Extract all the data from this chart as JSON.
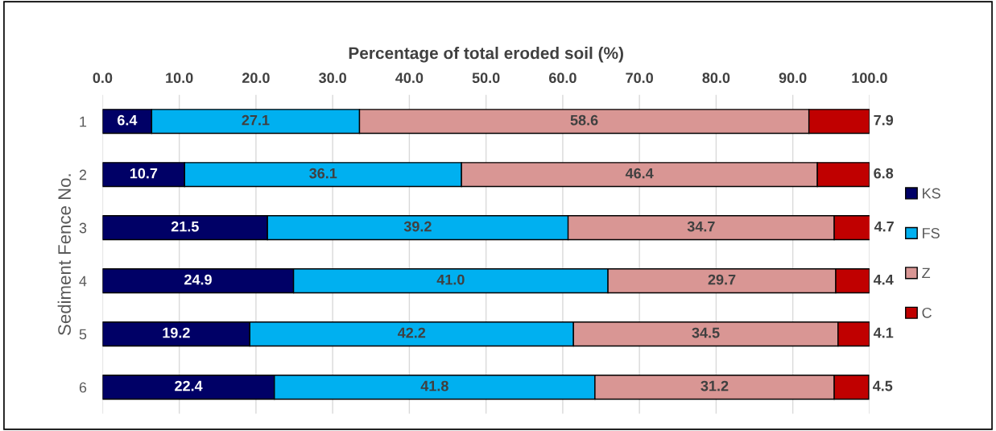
{
  "chart_data": {
    "type": "bar",
    "orientation": "horizontal",
    "stacked": true,
    "xlabel": "Percentage of total eroded soil (%)",
    "ylabel": "Sediment Fence No.",
    "categories": [
      "1",
      "2",
      "3",
      "4",
      "5",
      "6"
    ],
    "series": [
      {
        "name": "KS",
        "color": "#000066",
        "values": [
          6.4,
          10.7,
          21.5,
          24.9,
          19.2,
          22.4
        ],
        "value_labels": [
          "6.4",
          "10.7",
          "21.5",
          "24.9",
          "19.2",
          "22.4"
        ]
      },
      {
        "name": "FS",
        "color": "#00b0f0",
        "values": [
          27.1,
          36.1,
          39.2,
          41.0,
          42.2,
          41.8
        ],
        "value_labels": [
          "27.1",
          "36.1",
          "39.2",
          "41.0",
          "42.2",
          "41.8"
        ]
      },
      {
        "name": "Z",
        "color": "#d99694",
        "values": [
          58.6,
          46.4,
          34.7,
          29.7,
          34.5,
          31.2
        ],
        "value_labels": [
          "58.6",
          "46.4",
          "34.7",
          "29.7",
          "34.5",
          "31.2"
        ]
      },
      {
        "name": "C",
        "color": "#c00000",
        "values": [
          7.9,
          6.8,
          4.7,
          4.4,
          4.1,
          4.5
        ],
        "value_labels": [
          "7.9",
          "6.8",
          "4.7",
          "4.4",
          "4.1",
          "4.5"
        ]
      }
    ],
    "xlim": [
      0,
      100
    ],
    "xticks": [
      {
        "value": 0,
        "label": "0.0"
      },
      {
        "value": 10,
        "label": "10.0"
      },
      {
        "value": 20,
        "label": "20.0"
      },
      {
        "value": 30,
        "label": "30.0"
      },
      {
        "value": 40,
        "label": "40.0"
      },
      {
        "value": 50,
        "label": "50.0"
      },
      {
        "value": 60,
        "label": "60.0"
      },
      {
        "value": 70,
        "label": "70.0"
      },
      {
        "value": 80,
        "label": "80.0"
      },
      {
        "value": 90,
        "label": "90.0"
      },
      {
        "value": 100,
        "label": "100.0"
      }
    ],
    "grid": "x",
    "legend": "right"
  }
}
